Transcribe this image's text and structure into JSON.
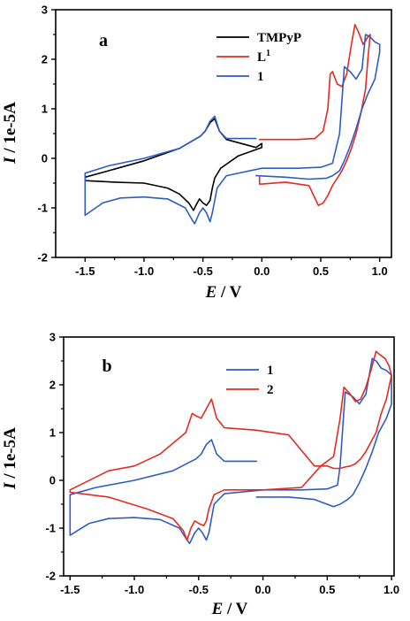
{
  "chart_data": [
    {
      "type": "line",
      "panel_label": "a",
      "xlabel_var": "E",
      "xlabel_unit": " / V",
      "ylabel_var": "I",
      "ylabel_unit": " / 1e-5A",
      "xlim": [
        -1.75,
        1.1
      ],
      "ylim": [
        -2,
        3
      ],
      "xticks": [
        -1.5,
        -1.0,
        -0.5,
        0.0,
        0.5,
        1.0
      ],
      "xtick_labels": [
        "-1.5",
        "-1.0",
        "-0.5",
        "0.0",
        "0.5",
        "1.0"
      ],
      "yticks": [
        -2,
        -1,
        0,
        1,
        2,
        3
      ],
      "ytick_labels": [
        "-2",
        "-1",
        "0",
        "1",
        "2",
        "3"
      ],
      "legend_position": "top-right",
      "series": [
        {
          "name": "TMPyP",
          "sup": "",
          "color": "#000000",
          "x": [
            0.0,
            -0.05,
            -0.3,
            -0.36,
            -0.4,
            -0.44,
            -0.48,
            -0.52,
            -0.7,
            -1.0,
            -1.3,
            -1.5,
            -1.5,
            -1.25,
            -1.0,
            -0.8,
            -0.7,
            -0.62,
            -0.58,
            -0.56,
            -0.53,
            -0.5,
            -0.47,
            -0.44,
            -0.42,
            -0.4,
            -0.35,
            -0.2,
            0.0,
            0.0
          ],
          "y": [
            0.3,
            0.22,
            0.38,
            0.55,
            0.8,
            0.72,
            0.55,
            0.45,
            0.2,
            -0.05,
            -0.25,
            -0.38,
            -0.45,
            -0.48,
            -0.5,
            -0.6,
            -0.72,
            -0.9,
            -1.05,
            -0.95,
            -0.82,
            -0.9,
            -0.95,
            -0.85,
            -0.6,
            -0.4,
            -0.2,
            0.05,
            0.22,
            0.3
          ]
        },
        {
          "name": "L",
          "sup": "1",
          "color": "#e32b22",
          "x": [
            -0.02,
            0.1,
            0.3,
            0.45,
            0.52,
            0.56,
            0.58,
            0.6,
            0.64,
            0.68,
            0.72,
            0.76,
            0.79,
            0.82,
            0.86,
            0.9,
            0.92,
            0.9,
            0.88,
            0.84,
            0.8,
            0.76,
            0.72,
            0.68,
            0.64,
            0.6,
            0.56,
            0.52,
            0.48,
            0.44,
            0.4,
            0.2,
            0.0,
            -0.02,
            -0.02
          ],
          "y": [
            0.38,
            0.38,
            0.38,
            0.4,
            0.55,
            1.0,
            1.7,
            1.75,
            1.5,
            1.45,
            1.7,
            2.3,
            2.7,
            2.55,
            2.3,
            2.45,
            2.5,
            2.0,
            1.4,
            0.9,
            0.5,
            0.2,
            -0.05,
            -0.25,
            -0.4,
            -0.55,
            -0.75,
            -0.9,
            -0.95,
            -0.75,
            -0.55,
            -0.48,
            -0.52,
            -0.52,
            -0.38
          ]
        },
        {
          "name": "1",
          "sup": "",
          "color": "#2f5cc4",
          "x": [
            -0.05,
            -0.3,
            -0.36,
            -0.4,
            -0.44,
            -0.48,
            -0.52,
            -0.7,
            -1.0,
            -1.3,
            -1.5,
            -1.5,
            -1.35,
            -1.2,
            -1.0,
            -0.8,
            -0.65,
            -0.59,
            -0.57,
            -0.53,
            -0.5,
            -0.47,
            -0.44,
            -0.42,
            -0.38,
            -0.3,
            0.0,
            0.3,
            0.5,
            0.6,
            0.66,
            0.7,
            0.75,
            0.8,
            0.85,
            0.88,
            0.92,
            0.96,
            1.0,
            1.0,
            0.96,
            0.9,
            0.85,
            0.8,
            0.75,
            0.7,
            0.66,
            0.6,
            0.55,
            0.4,
            0.2,
            -0.05
          ],
          "y": [
            0.4,
            0.4,
            0.55,
            0.85,
            0.75,
            0.55,
            0.45,
            0.2,
            0.0,
            -0.15,
            -0.3,
            -1.15,
            -0.9,
            -0.8,
            -0.78,
            -0.82,
            -1.0,
            -1.25,
            -1.32,
            -1.1,
            -1.0,
            -1.1,
            -1.28,
            -1.1,
            -0.6,
            -0.35,
            -0.2,
            -0.2,
            -0.18,
            -0.1,
            0.5,
            1.85,
            1.75,
            1.6,
            1.8,
            2.5,
            2.45,
            2.35,
            2.3,
            2.15,
            1.6,
            1.3,
            1.0,
            0.6,
            0.25,
            -0.05,
            -0.25,
            -0.35,
            -0.4,
            -0.42,
            -0.38,
            -0.35
          ]
        }
      ]
    },
    {
      "type": "line",
      "panel_label": "b",
      "xlabel_var": "E",
      "xlabel_unit": " / V",
      "ylabel_var": "I",
      "ylabel_unit": " / 1e-5A",
      "xlim": [
        -1.55,
        1.02
      ],
      "ylim": [
        -2,
        3
      ],
      "xticks": [
        -1.5,
        -1.0,
        -0.5,
        0.0,
        0.5,
        1.0
      ],
      "xtick_labels": [
        "-1.5",
        "-1.0",
        "-0.5",
        "0.0",
        "0.5",
        "1.0"
      ],
      "yticks": [
        -2,
        -1,
        0,
        1,
        2,
        3
      ],
      "ytick_labels": [
        "-2",
        "-1",
        "0",
        "1",
        "2",
        "3"
      ],
      "legend_position": "top-right",
      "series": [
        {
          "name": "1",
          "sup": "",
          "color": "#2f5cc4",
          "x": [
            -0.05,
            -0.3,
            -0.36,
            -0.4,
            -0.44,
            -0.48,
            -0.52,
            -0.7,
            -1.0,
            -1.3,
            -1.5,
            -1.5,
            -1.35,
            -1.2,
            -1.0,
            -0.8,
            -0.65,
            -0.59,
            -0.57,
            -0.53,
            -0.5,
            -0.47,
            -0.44,
            -0.42,
            -0.38,
            -0.3,
            0.0,
            0.3,
            0.5,
            0.58,
            0.6,
            0.64,
            0.7,
            0.75,
            0.8,
            0.85,
            0.88,
            0.92,
            0.96,
            1.0,
            1.0,
            0.96,
            0.9,
            0.85,
            0.8,
            0.75,
            0.7,
            0.66,
            0.6,
            0.55,
            0.4,
            0.2,
            -0.05
          ],
          "y": [
            0.4,
            0.4,
            0.55,
            0.85,
            0.75,
            0.55,
            0.45,
            0.2,
            0.0,
            -0.15,
            -0.3,
            -1.15,
            -0.9,
            -0.8,
            -0.78,
            -0.82,
            -1.0,
            -1.25,
            -1.32,
            -1.1,
            -1.0,
            -1.1,
            -1.25,
            -1.1,
            -0.5,
            -0.28,
            -0.2,
            -0.2,
            -0.18,
            -0.1,
            0.3,
            1.85,
            1.75,
            1.6,
            1.8,
            2.55,
            2.5,
            2.35,
            2.3,
            2.2,
            1.6,
            1.3,
            1.0,
            0.6,
            0.25,
            -0.05,
            -0.3,
            -0.4,
            -0.5,
            -0.55,
            -0.4,
            -0.35,
            -0.35
          ]
        },
        {
          "name": "2",
          "sup": "",
          "color": "#e32b22",
          "x": [
            -0.05,
            -0.3,
            -0.36,
            -0.4,
            -0.44,
            -0.48,
            -0.52,
            -0.55,
            -0.6,
            -0.8,
            -1.0,
            -1.2,
            -1.5,
            -1.5,
            -1.35,
            -1.2,
            -0.9,
            -0.7,
            -0.62,
            -0.59,
            -0.56,
            -0.53,
            -0.5,
            -0.46,
            -0.44,
            -0.42,
            -0.38,
            -0.3,
            0.0,
            0.3,
            0.45,
            0.55,
            0.6,
            0.63,
            0.68,
            0.72,
            0.76,
            0.8,
            0.84,
            0.88,
            0.9,
            0.95,
            0.98,
            1.0,
            0.96,
            0.92,
            0.88,
            0.84,
            0.8,
            0.76,
            0.72,
            0.68,
            0.64,
            0.6,
            0.55,
            0.5,
            0.4,
            0.2,
            -0.05
          ],
          "y": [
            1.05,
            1.1,
            1.3,
            1.7,
            1.5,
            1.3,
            1.35,
            1.4,
            1.0,
            0.55,
            0.3,
            0.2,
            -0.2,
            -0.25,
            -0.3,
            -0.35,
            -0.6,
            -0.8,
            -1.05,
            -1.25,
            -1.0,
            -0.85,
            -0.9,
            -0.95,
            -0.85,
            -0.6,
            -0.3,
            -0.2,
            -0.2,
            -0.15,
            0.3,
            0.5,
            1.3,
            1.95,
            1.8,
            1.65,
            1.7,
            1.95,
            2.3,
            2.7,
            2.65,
            2.55,
            2.4,
            2.2,
            1.7,
            1.4,
            1.0,
            0.8,
            0.6,
            0.45,
            0.35,
            0.3,
            0.28,
            0.25,
            0.25,
            0.3,
            0.3,
            0.95,
            1.05
          ]
        }
      ]
    }
  ]
}
